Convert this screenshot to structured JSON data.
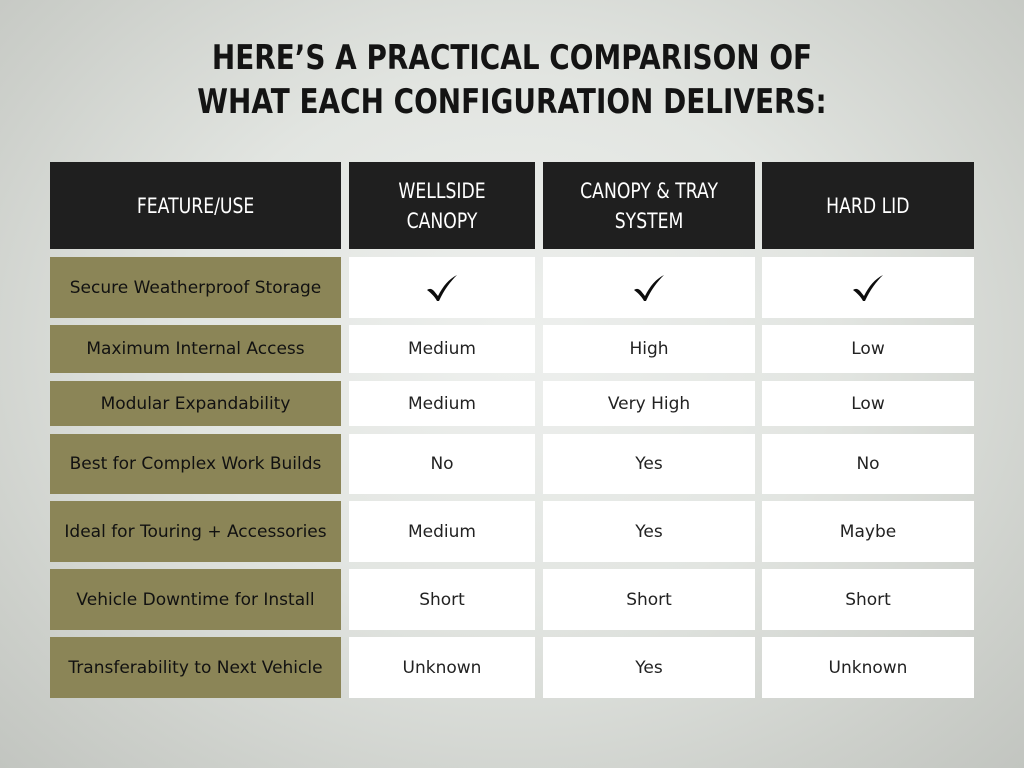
{
  "title": {
    "line1": "HERE’S A PRACTICAL COMPARISON OF",
    "line2": "WHAT EACH CONFIGURATION DELIVERS:"
  },
  "table": {
    "headers": [
      "FEATURE/USE",
      "WELLSIDE CANOPY",
      "CANOPY & TRAY\nSYSTEM",
      "HARD LID"
    ],
    "rows": [
      {
        "feature": "Secure Weatherproof Storage",
        "values": [
          "check-icon",
          "check-icon",
          "check-icon"
        ]
      },
      {
        "feature": "Maximum Internal Access",
        "values": [
          "Medium",
          "High",
          "Low"
        ]
      },
      {
        "feature": "Modular Expandability",
        "values": [
          "Medium",
          "Very High",
          "Low"
        ]
      },
      {
        "feature": "Best for Complex Work Builds",
        "values": [
          "No",
          "Yes",
          "No"
        ]
      },
      {
        "feature": "Ideal for Touring + Accessories",
        "values": [
          "Medium",
          "Yes",
          "Maybe"
        ]
      },
      {
        "feature": "Vehicle Downtime for Install",
        "values": [
          "Short",
          "Short",
          "Short"
        ]
      },
      {
        "feature": "Transferability to Next Vehicle",
        "values": [
          "Unknown",
          "Yes",
          "Unknown"
        ]
      }
    ]
  },
  "colors": {
    "header_bg": "#1f1f1f",
    "feature_bg": "#8b8557",
    "value_bg": "#ffffff"
  }
}
